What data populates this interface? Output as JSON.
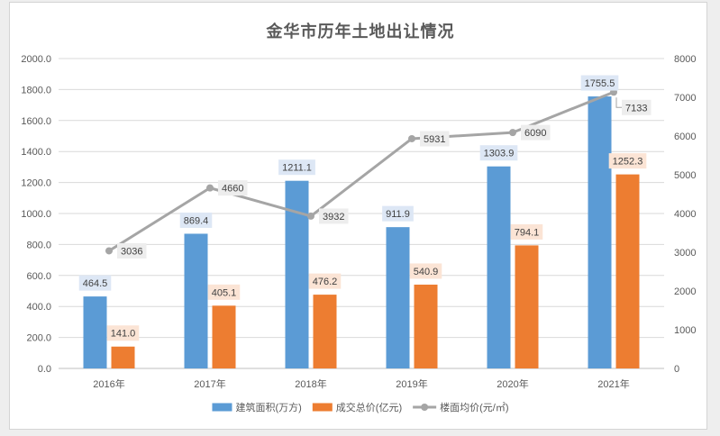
{
  "chart_data": {
    "type": "bar",
    "title": "金华市历年土地出让情况",
    "categories": [
      "2016年",
      "2017年",
      "2018年",
      "2019年",
      "2020年",
      "2021年"
    ],
    "series": [
      {
        "name": "建筑面积(万方)",
        "type": "bar",
        "axis": "left",
        "color": "#5b9bd5",
        "values": [
          464.5,
          869.4,
          1211.1,
          911.9,
          1303.9,
          1755.5
        ],
        "labels": [
          "464.5",
          "869.4",
          "1211.1",
          "911.9",
          "1303.9",
          "1755.5"
        ]
      },
      {
        "name": "成交总价(亿元)",
        "type": "bar",
        "axis": "left",
        "color": "#ed7d31",
        "values": [
          141.0,
          405.1,
          476.2,
          540.9,
          794.1,
          1252.3
        ],
        "labels": [
          "141.0",
          "405.1",
          "476.2",
          "540.9",
          "794.1",
          "1252.3"
        ]
      },
      {
        "name": "楼面均价(元/㎡)",
        "type": "line",
        "axis": "right",
        "color": "#a5a5a5",
        "values": [
          3036,
          4660,
          3932,
          5931,
          6090,
          7133
        ]
      }
    ],
    "ylim": [
      0,
      2000
    ],
    "yticks": [
      "0.0",
      "200.0",
      "400.0",
      "600.0",
      "800.0",
      "1000.0",
      "1200.0",
      "1400.0",
      "1600.0",
      "1800.0",
      "2000.0"
    ],
    "y2lim": [
      0,
      8000
    ],
    "y2ticks": [
      "0",
      "1000",
      "2000",
      "3000",
      "4000",
      "5000",
      "6000",
      "7000",
      "8000"
    ],
    "grid": true,
    "legend": "bottom"
  }
}
